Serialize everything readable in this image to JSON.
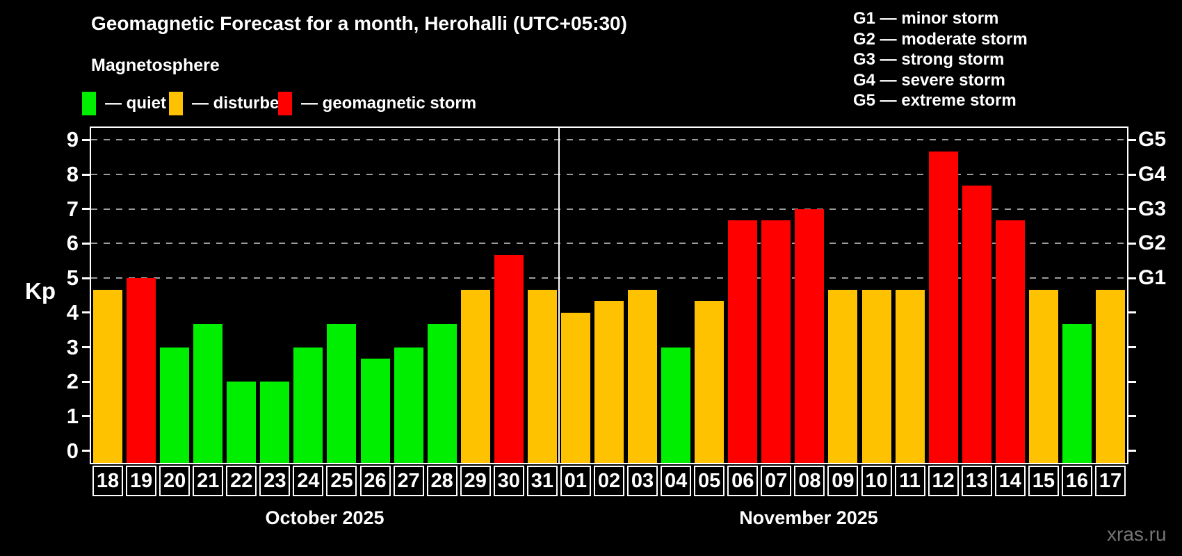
{
  "header": {
    "title": "Geomagnetic Forecast for a month, Herohalli (UTC+05:30)",
    "subtitle": "Magnetosphere"
  },
  "legend": {
    "items": [
      {
        "key": "quiet",
        "label": "— quiet",
        "color": "#00ef00"
      },
      {
        "key": "disturbed",
        "label": "— disturbed",
        "color": "#ffc200"
      },
      {
        "key": "storm",
        "label": "— geomagnetic storm",
        "color": "#ff0000"
      }
    ]
  },
  "g_legend": {
    "items": [
      "G1 — minor storm",
      "G2 — moderate storm",
      "G3 — strong storm",
      "G4 — severe storm",
      "G5 — extreme storm"
    ]
  },
  "chart_data": {
    "type": "bar",
    "title": "Geomagnetic Forecast for a month, Herohalli (UTC+05:30)",
    "ylabel": "Kp",
    "ylim": [
      0,
      9
    ],
    "y_ticks": [
      0,
      1,
      2,
      3,
      4,
      5,
      6,
      7,
      8,
      9
    ],
    "gridlines_at": [
      5,
      6,
      7,
      8,
      9
    ],
    "grid": "dashed",
    "right_axis": [
      {
        "label": "G1",
        "kp": 5
      },
      {
        "label": "G2",
        "kp": 6
      },
      {
        "label": "G3",
        "kp": 7
      },
      {
        "label": "G4",
        "kp": 8
      },
      {
        "label": "G5",
        "kp": 9
      }
    ],
    "months": [
      {
        "label": "October 2025",
        "days_count": 14
      },
      {
        "label": "November 2025",
        "days_count": 17
      }
    ],
    "levels": {
      "quiet": "#00ef00",
      "disturbed": "#ffc200",
      "storm": "#ff0000"
    },
    "series": [
      {
        "day": "18",
        "value": 4.67,
        "level": "disturbed"
      },
      {
        "day": "19",
        "value": 5.0,
        "level": "storm"
      },
      {
        "day": "20",
        "value": 3.0,
        "level": "quiet"
      },
      {
        "day": "21",
        "value": 3.67,
        "level": "quiet"
      },
      {
        "day": "22",
        "value": 2.0,
        "level": "quiet"
      },
      {
        "day": "23",
        "value": 2.0,
        "level": "quiet"
      },
      {
        "day": "24",
        "value": 3.0,
        "level": "quiet"
      },
      {
        "day": "25",
        "value": 3.67,
        "level": "quiet"
      },
      {
        "day": "26",
        "value": 2.67,
        "level": "quiet"
      },
      {
        "day": "27",
        "value": 3.0,
        "level": "quiet"
      },
      {
        "day": "28",
        "value": 3.67,
        "level": "quiet"
      },
      {
        "day": "29",
        "value": 4.67,
        "level": "disturbed"
      },
      {
        "day": "30",
        "value": 5.67,
        "level": "storm"
      },
      {
        "day": "31",
        "value": 4.67,
        "level": "disturbed"
      },
      {
        "day": "01",
        "value": 4.0,
        "level": "disturbed"
      },
      {
        "day": "02",
        "value": 4.33,
        "level": "disturbed"
      },
      {
        "day": "03",
        "value": 4.67,
        "level": "disturbed"
      },
      {
        "day": "04",
        "value": 3.0,
        "level": "quiet"
      },
      {
        "day": "05",
        "value": 4.33,
        "level": "disturbed"
      },
      {
        "day": "06",
        "value": 6.67,
        "level": "storm"
      },
      {
        "day": "07",
        "value": 6.67,
        "level": "storm"
      },
      {
        "day": "08",
        "value": 7.0,
        "level": "storm"
      },
      {
        "day": "09",
        "value": 4.67,
        "level": "disturbed"
      },
      {
        "day": "10",
        "value": 4.67,
        "level": "disturbed"
      },
      {
        "day": "11",
        "value": 4.67,
        "level": "disturbed"
      },
      {
        "day": "12",
        "value": 8.67,
        "level": "storm"
      },
      {
        "day": "13",
        "value": 7.67,
        "level": "storm"
      },
      {
        "day": "14",
        "value": 6.67,
        "level": "storm"
      },
      {
        "day": "15",
        "value": 4.67,
        "level": "disturbed"
      },
      {
        "day": "16",
        "value": 3.67,
        "level": "quiet"
      },
      {
        "day": "17",
        "value": 4.67,
        "level": "disturbed"
      }
    ]
  },
  "footer": {
    "watermark": "xras.ru"
  }
}
